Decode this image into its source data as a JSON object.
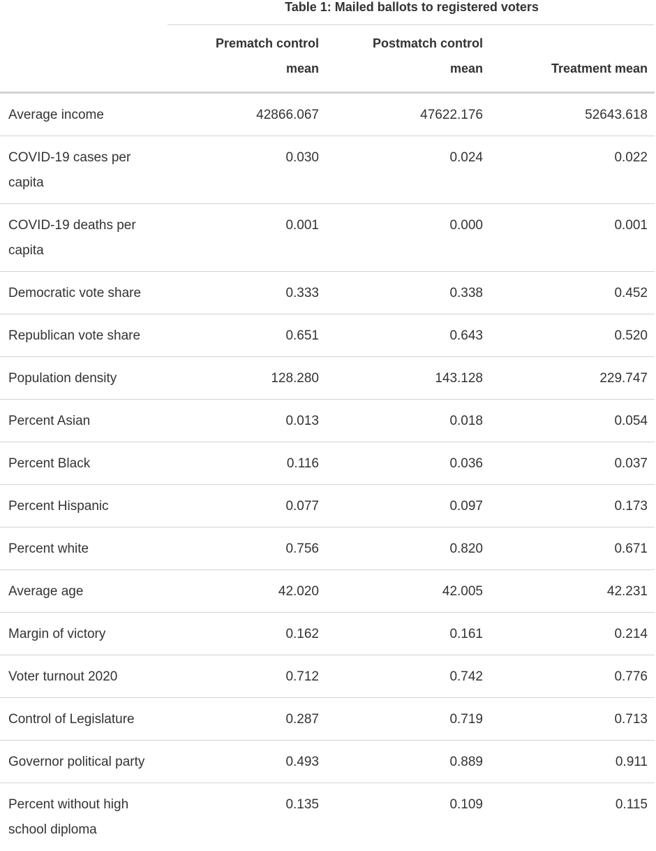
{
  "table": {
    "title": "Table 1: Mailed ballots to registered voters",
    "headers": {
      "prematch": "Prematch control mean",
      "postmatch": "Postmatch control mean",
      "treatment": "Treatment mean"
    },
    "rows": [
      {
        "label": "Average income",
        "prematch": "42866.067",
        "postmatch": "47622.176",
        "treatment": "52643.618"
      },
      {
        "label": "COVID-19 cases per capita",
        "prematch": "0.030",
        "postmatch": "0.024",
        "treatment": "0.022"
      },
      {
        "label": "COVID-19 deaths per capita",
        "prematch": "0.001",
        "postmatch": "0.000",
        "treatment": "0.001"
      },
      {
        "label": "Democratic vote share",
        "prematch": "0.333",
        "postmatch": "0.338",
        "treatment": "0.452"
      },
      {
        "label": "Republican vote share",
        "prematch": "0.651",
        "postmatch": "0.643",
        "treatment": "0.520"
      },
      {
        "label": "Population density",
        "prematch": "128.280",
        "postmatch": "143.128",
        "treatment": "229.747"
      },
      {
        "label": "Percent Asian",
        "prematch": "0.013",
        "postmatch": "0.018",
        "treatment": "0.054"
      },
      {
        "label": "Percent Black",
        "prematch": "0.116",
        "postmatch": "0.036",
        "treatment": "0.037"
      },
      {
        "label": "Percent Hispanic",
        "prematch": "0.077",
        "postmatch": "0.097",
        "treatment": "0.173"
      },
      {
        "label": "Percent white",
        "prematch": "0.756",
        "postmatch": "0.820",
        "treatment": "0.671"
      },
      {
        "label": "Average age",
        "prematch": "42.020",
        "postmatch": "42.005",
        "treatment": "42.231"
      },
      {
        "label": "Margin of victory",
        "prematch": "0.162",
        "postmatch": "0.161",
        "treatment": "0.214"
      },
      {
        "label": "Voter turnout 2020",
        "prematch": "0.712",
        "postmatch": "0.742",
        "treatment": "0.776"
      },
      {
        "label": "Control of Legislature",
        "prematch": "0.287",
        "postmatch": "0.719",
        "treatment": "0.713"
      },
      {
        "label": "Governor political party",
        "prematch": "0.493",
        "postmatch": "0.889",
        "treatment": "0.911"
      },
      {
        "label": "Percent without high school diploma",
        "prematch": "0.135",
        "postmatch": "0.109",
        "treatment": "0.115"
      }
    ]
  }
}
